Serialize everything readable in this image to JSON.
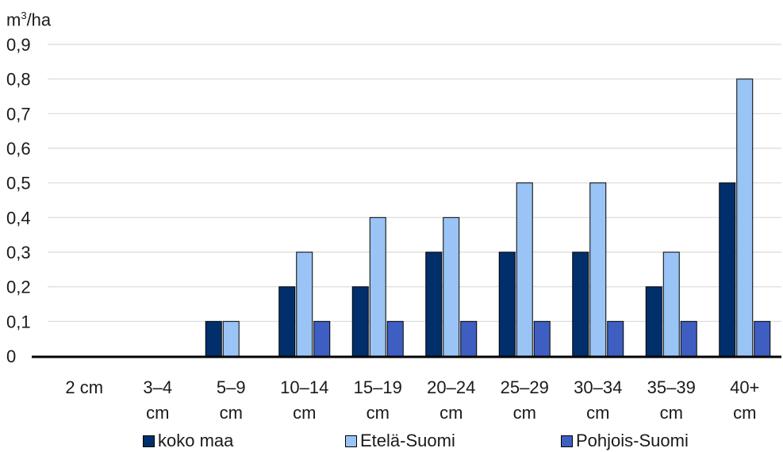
{
  "chart_data": {
    "type": "bar",
    "ylabel_base": "m",
    "ylabel_sup": "3",
    "ylabel_rest": "/ha",
    "categories": [
      [
        "2 cm"
      ],
      [
        "3–4",
        "cm"
      ],
      [
        "5–9",
        "cm"
      ],
      [
        "10–14",
        "cm"
      ],
      [
        "15–19",
        "cm"
      ],
      [
        "20–24",
        "cm"
      ],
      [
        "25–29",
        "cm"
      ],
      [
        "30–34",
        "cm"
      ],
      [
        "35–39",
        "cm"
      ],
      [
        "40+",
        "cm"
      ]
    ],
    "series": [
      {
        "name": "koko maa",
        "color": "#002f6c",
        "values": [
          0,
          0,
          0.1,
          0.2,
          0.2,
          0.3,
          0.3,
          0.3,
          0.2,
          0.5
        ]
      },
      {
        "name": "Etelä-Suomi",
        "color": "#99c4f5",
        "values": [
          0,
          0,
          0.1,
          0.3,
          0.4,
          0.4,
          0.5,
          0.5,
          0.3,
          0.8
        ]
      },
      {
        "name": "Pohjois-Suomi",
        "color": "#3e5fc1",
        "values": [
          0,
          0,
          0,
          0.1,
          0.1,
          0.1,
          0.1,
          0.1,
          0.1,
          0.1
        ]
      }
    ],
    "ylim": [
      0,
      0.9
    ],
    "yticks": [
      "0",
      "0,1",
      "0,2",
      "0,3",
      "0,4",
      "0,5",
      "0,6",
      "0,7",
      "0,8",
      "0,9"
    ],
    "grid": true,
    "legend_position": "bottom"
  }
}
